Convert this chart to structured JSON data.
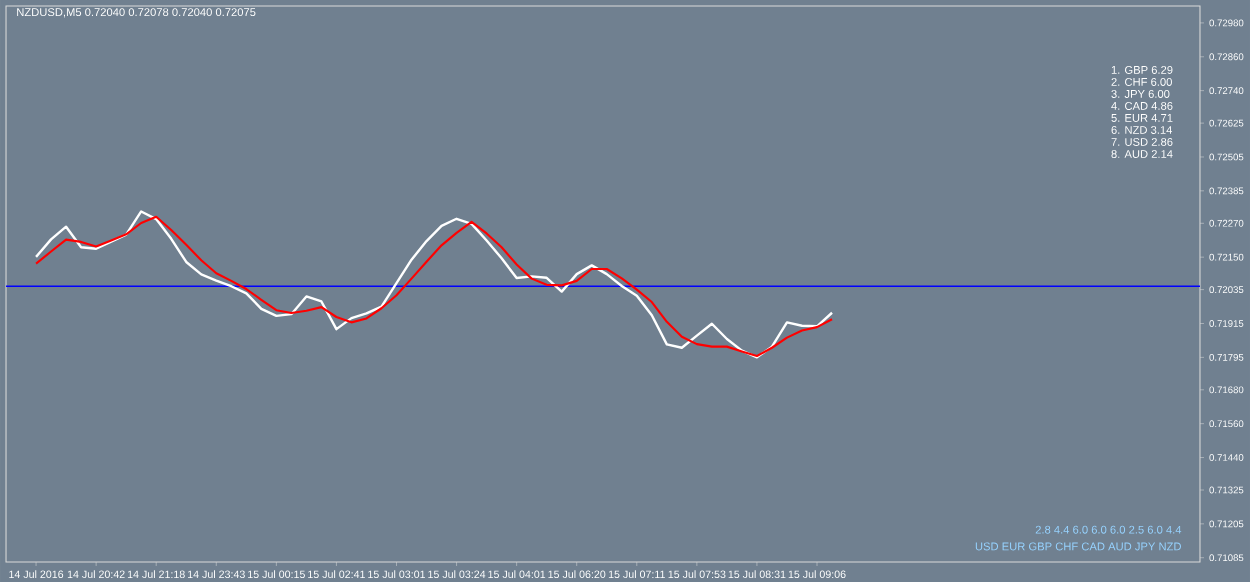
{
  "chart_data": {
    "type": "line",
    "title": "NZDUSD,M5  0.72040 0.72078 0.72040 0.72075",
    "categories": [
      "14 Jul 2016",
      null,
      null,
      null,
      "14 Jul 20:42",
      null,
      null,
      null,
      "14 Jul 21:18",
      null,
      null,
      null,
      "14 Jul 23:43",
      null,
      null,
      null,
      "15 Jul 00:15",
      null,
      null,
      null,
      "15 Jul 02:41",
      null,
      null,
      null,
      "15 Jul 03:01",
      null,
      null,
      null,
      "15 Jul 03:24",
      null,
      null,
      null,
      "15 Jul 04:01",
      null,
      null,
      null,
      "15 Jul 06:20",
      null,
      null,
      null,
      "15 Jul 07:11",
      null,
      null,
      null,
      "15 Jul 07:53",
      null,
      null,
      null,
      "15 Jul 08:31",
      null,
      null,
      null,
      "15 Jul 09:06",
      null,
      null,
      null,
      null,
      null,
      null,
      null,
      null,
      null,
      null,
      null,
      null,
      null,
      null,
      null,
      null,
      null,
      null,
      null,
      null,
      null,
      null,
      null,
      null,
      null
    ],
    "series": [
      {
        "color": "#ffffff",
        "values": [
          0.72151,
          0.72213,
          0.72258,
          0.72185,
          0.7218,
          0.72205,
          0.7223,
          0.72312,
          0.72285,
          0.72215,
          0.72133,
          0.72089,
          0.72067,
          0.72047,
          0.72022,
          0.71967,
          0.71942,
          0.71948,
          0.72011,
          0.71993,
          0.71895,
          0.71934,
          0.71951,
          0.71975,
          0.72058,
          0.72141,
          0.72207,
          0.72261,
          0.72286,
          0.72268,
          0.72209,
          0.72146,
          0.72076,
          0.72082,
          0.72077,
          0.72028,
          0.7209,
          0.72121,
          0.7209,
          0.72048,
          0.72013,
          0.71944,
          0.71841,
          0.71829,
          0.71872,
          0.71914,
          0.7186,
          0.71819,
          0.71795,
          0.71833,
          0.71919,
          0.71907,
          0.71905,
          0.71953,
          null,
          null,
          null,
          null,
          null,
          null,
          null,
          null,
          null,
          null,
          null,
          null,
          null,
          null,
          null,
          null,
          null,
          null,
          null,
          null,
          null,
          null,
          null,
          null
        ]
      },
      {
        "color": "#ff0000",
        "values": [
          0.72127,
          0.7217,
          0.72212,
          0.72204,
          0.72188,
          0.72209,
          0.72231,
          0.72271,
          0.72293,
          0.72246,
          0.72194,
          0.72139,
          0.72093,
          0.72066,
          0.72037,
          0.71999,
          0.71962,
          0.71952,
          0.7196,
          0.71973,
          0.71938,
          0.71919,
          0.71933,
          0.71969,
          0.72015,
          0.72074,
          0.72134,
          0.72192,
          0.72236,
          0.72275,
          0.72234,
          0.72185,
          0.72124,
          0.72074,
          0.72052,
          0.7205,
          0.72066,
          0.72108,
          0.72108,
          0.72075,
          0.72035,
          0.71991,
          0.71921,
          0.71868,
          0.71842,
          0.71833,
          0.71833,
          0.71816,
          0.718,
          0.71829,
          0.71865,
          0.7189,
          0.71902,
          0.7193,
          null,
          null,
          null,
          null,
          null,
          null,
          null,
          null,
          null,
          null,
          null,
          null,
          null,
          null,
          null,
          null,
          null,
          null,
          null,
          null,
          null,
          null,
          null,
          null
        ]
      }
    ],
    "ylim": [
      0.7107,
      0.7304
    ],
    "yticks": [
      {
        "value": 0.7298,
        "label": "0.72980"
      },
      {
        "value": 0.7286,
        "label": "0.72860"
      },
      {
        "value": 0.7274,
        "label": "0.72740"
      },
      {
        "value": 0.72625,
        "label": "0.72625"
      },
      {
        "value": 0.72505,
        "label": "0.72505"
      },
      {
        "value": 0.72385,
        "label": "0.72385"
      },
      {
        "value": 0.7227,
        "label": "0.72270"
      },
      {
        "value": 0.7215,
        "label": "0.72150"
      },
      {
        "value": 0.72035,
        "label": "0.72035"
      },
      {
        "value": 0.71915,
        "label": "0.71915"
      },
      {
        "value": 0.71795,
        "label": "0.71795"
      },
      {
        "value": 0.7168,
        "label": "0.71680"
      },
      {
        "value": 0.7156,
        "label": "0.71560"
      },
      {
        "value": 0.7144,
        "label": "0.71440"
      },
      {
        "value": 0.71325,
        "label": "0.71325"
      },
      {
        "value": 0.71205,
        "label": "0.71205"
      },
      {
        "value": 0.71085,
        "label": "0.71085"
      }
    ],
    "ref_lines": [
      {
        "axis": "y",
        "value": 0.72047,
        "color": "#0000ff"
      }
    ],
    "annotations": [
      "1. GBP  6.29",
      "2. CHF  6.00",
      "3. JPY  6.00",
      "4. CAD  4.86",
      "5. EUR  4.71",
      "6. NZD  3.14",
      "7. USD  2.86",
      "8. AUD  2.14",
      "2.8 4.4 6.0 6.0 6.0 2.5 6.0 4.4",
      "USD EUR GBP CHF CAD AUD JPY NZD"
    ],
    "grid": false,
    "line_style": "solid",
    "marker": "none"
  }
}
